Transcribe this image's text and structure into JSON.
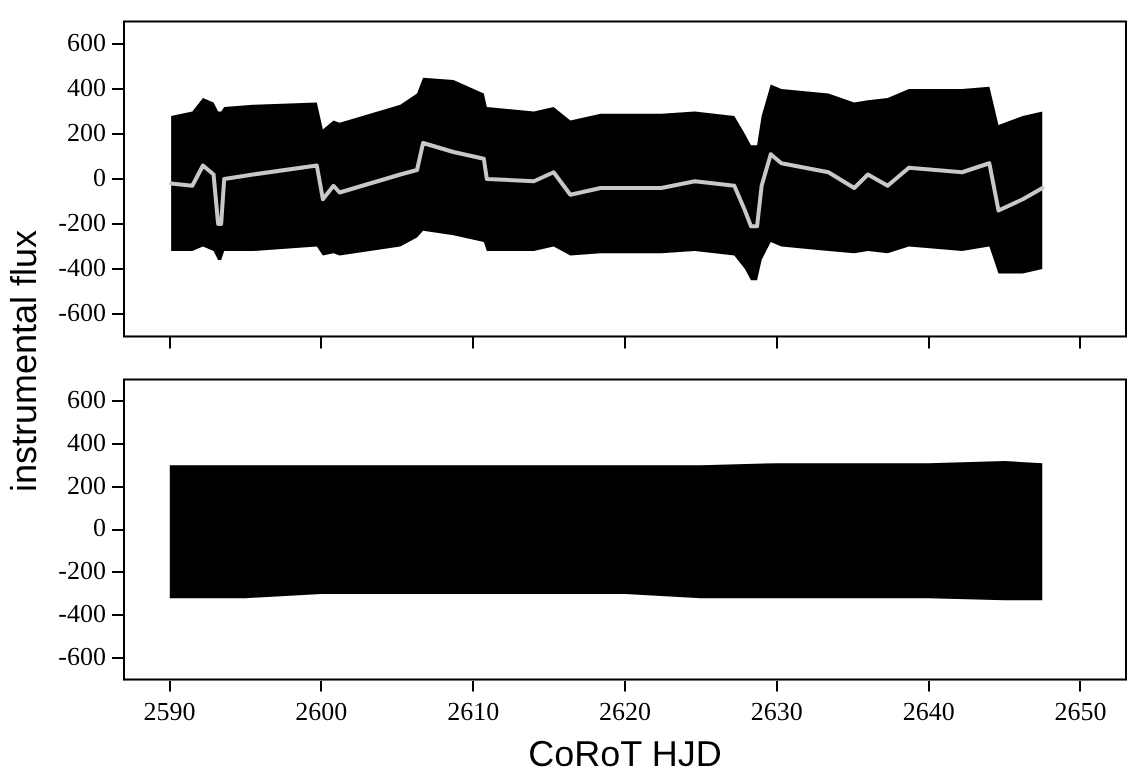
{
  "chart_data": [
    {
      "type": "line",
      "ylabel": "instrumental flux",
      "xlim": [
        2587,
        2653
      ],
      "ylim": [
        -700,
        700
      ],
      "xticks": [
        2590,
        2600,
        2610,
        2620,
        2630,
        2640,
        2650
      ],
      "yticks": [
        -600,
        -400,
        -200,
        0,
        200,
        400,
        600
      ],
      "tick_labels": "y",
      "series": [
        {
          "color": "#c8c8c8",
          "x": [
            2590.1,
            2591.5,
            2592.2,
            2592.9,
            2593.2,
            2593.4,
            2593.6,
            2595.5,
            2599.7,
            2600.1,
            2600.8,
            2601.2,
            2605.2,
            2606.3,
            2606.7,
            2608.7,
            2610.7,
            2610.9,
            2614,
            2615.3,
            2616.4,
            2618.4,
            2622.4,
            2624.6,
            2627.2,
            2627.9,
            2628.3,
            2628.7,
            2629,
            2629.6,
            2630.3,
            2633.4,
            2635.1,
            2636,
            2637.3,
            2638.7,
            2642.2,
            2644,
            2644.6,
            2646.2,
            2647.5
          ],
          "values": [
            -20,
            -30,
            60,
            20,
            -200,
            -200,
            0,
            20,
            60,
            -90,
            -30,
            -60,
            20,
            40,
            160,
            120,
            90,
            0,
            -10,
            30,
            -70,
            -40,
            -40,
            -10,
            -30,
            -140,
            -210,
            -210,
            -30,
            110,
            70,
            30,
            -40,
            20,
            -30,
            50,
            30,
            70,
            -140,
            -90,
            -40
          ],
          "lower": [
            -320,
            -320,
            -300,
            -320,
            -360,
            -360,
            -320,
            -320,
            -300,
            -340,
            -330,
            -340,
            -300,
            -260,
            -230,
            -250,
            -280,
            -320,
            -320,
            -300,
            -340,
            -330,
            -330,
            -320,
            -340,
            -400,
            -450,
            -450,
            -360,
            -280,
            -300,
            -320,
            -330,
            -320,
            -330,
            -300,
            -320,
            -300,
            -420,
            -420,
            -400
          ],
          "upper": [
            280,
            300,
            360,
            340,
            300,
            300,
            320,
            330,
            340,
            220,
            260,
            250,
            330,
            380,
            450,
            440,
            380,
            320,
            300,
            320,
            260,
            290,
            290,
            300,
            280,
            200,
            150,
            150,
            280,
            420,
            400,
            380,
            340,
            350,
            360,
            400,
            400,
            410,
            240,
            280,
            300
          ]
        }
      ]
    },
    {
      "type": "line",
      "xlabel": "CoRoT HJD",
      "xlim": [
        2587,
        2653
      ],
      "ylim": [
        -700,
        700
      ],
      "xticks": [
        2590,
        2600,
        2610,
        2620,
        2630,
        2640,
        2650
      ],
      "yticks": [
        -600,
        -400,
        -200,
        0,
        200,
        400,
        600
      ],
      "series": [
        {
          "color": "#000000",
          "x": [
            2590,
            2595,
            2600,
            2605,
            2610,
            2615,
            2620,
            2625,
            2630,
            2635,
            2640,
            2645,
            2647.5
          ],
          "values": [
            null,
            null,
            null,
            null,
            null,
            null,
            null,
            null,
            null,
            null,
            null,
            null,
            null
          ],
          "lower": [
            -320,
            -320,
            -300,
            -300,
            -300,
            -300,
            -300,
            -320,
            -320,
            -320,
            -320,
            -330,
            -330
          ],
          "upper": [
            300,
            300,
            300,
            300,
            300,
            300,
            300,
            300,
            310,
            310,
            310,
            320,
            310
          ]
        }
      ]
    }
  ]
}
